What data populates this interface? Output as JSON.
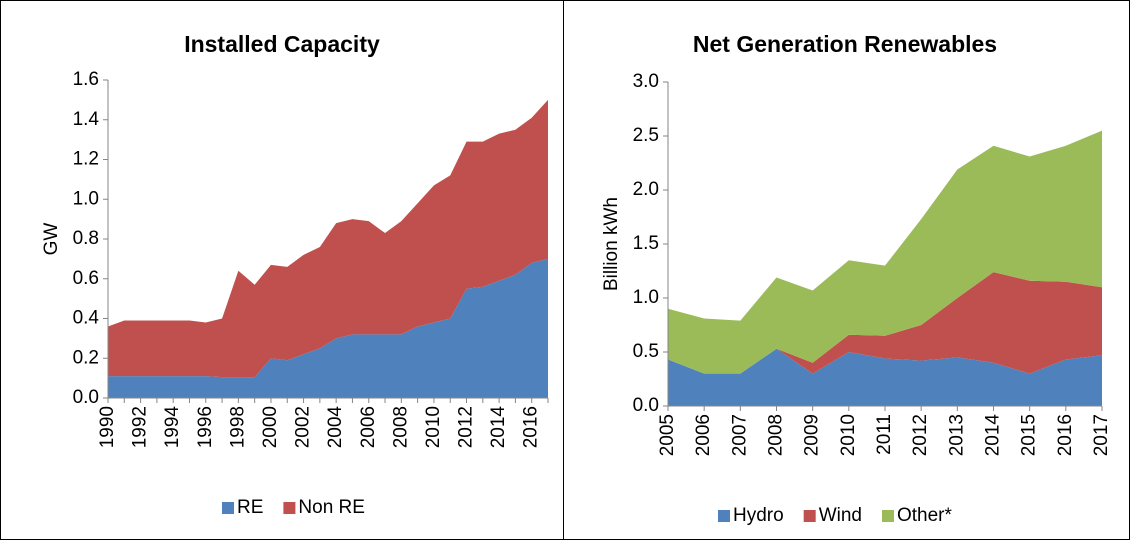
{
  "chart_data": [
    {
      "type": "area",
      "stacked": true,
      "title": "Installed Capacity",
      "y_label": "GW",
      "categories": [
        "1990",
        null,
        "1992",
        null,
        "1994",
        null,
        "1996",
        null,
        "1998",
        null,
        "2000",
        null,
        "2002",
        null,
        "2004",
        null,
        "2006",
        null,
        "2008",
        null,
        "2010",
        null,
        "2012",
        null,
        "2014",
        null,
        "2016",
        null
      ],
      "series": [
        {
          "name": "RE",
          "color": "#4f81bd",
          "values": [
            0.11,
            0.11,
            0.11,
            0.11,
            0.11,
            0.11,
            0.11,
            0.105,
            0.105,
            0.105,
            0.2,
            0.19,
            0.22,
            0.25,
            0.3,
            0.32,
            0.32,
            0.32,
            0.32,
            0.36,
            0.38,
            0.4,
            0.55,
            0.56,
            0.59,
            0.62,
            0.68,
            0.7
          ]
        },
        {
          "name": "Non RE",
          "color": "#c0504d",
          "values": [
            0.25,
            0.28,
            0.28,
            0.28,
            0.28,
            0.28,
            0.27,
            0.295,
            0.535,
            0.465,
            0.47,
            0.47,
            0.5,
            0.51,
            0.58,
            0.58,
            0.57,
            0.51,
            0.57,
            0.62,
            0.69,
            0.72,
            0.74,
            0.73,
            0.74,
            0.73,
            0.73,
            0.8
          ]
        }
      ],
      "ylim": [
        0,
        1.6
      ],
      "yticks": [
        {
          "value": 0,
          "label": "0.0"
        },
        0.2,
        0.4,
        0.6,
        0.8,
        {
          "value": 1,
          "label": "1.0"
        },
        1.2,
        1.4,
        1.6
      ],
      "legend": "bottom"
    },
    {
      "type": "area",
      "stacked": true,
      "title": "Net Generation Renewables",
      "y_label": "Billion kWh",
      "categories": [
        "2005",
        "2006",
        "2007",
        "2008",
        "2009",
        "2010",
        "2011",
        "2012",
        "2013",
        "2014",
        "2015",
        "2016",
        "2017"
      ],
      "series": [
        {
          "name": "Hydro",
          "color": "#4f81bd",
          "values": [
            0.43,
            0.3,
            0.3,
            0.53,
            0.3,
            0.5,
            0.44,
            0.42,
            0.45,
            0.4,
            0.3,
            0.43,
            0.47
          ]
        },
        {
          "name": "Wind",
          "color": "#c0504d",
          "values": [
            0,
            0,
            0,
            0,
            0.1,
            0.16,
            0.21,
            0.33,
            0.55,
            0.84,
            0.86,
            0.72,
            0.63
          ]
        },
        {
          "name": "Other*",
          "color": "#9bbb59",
          "values": [
            0.47,
            0.51,
            0.49,
            0.66,
            0.67,
            0.69,
            0.65,
            0.98,
            1.19,
            1.17,
            1.15,
            1.26,
            1.45
          ]
        }
      ],
      "ylim": [
        0,
        3
      ],
      "yticks": [
        {
          "value": 0,
          "label": "0.0"
        },
        0.5,
        {
          "value": 1,
          "label": "1.0"
        },
        1.5,
        {
          "value": 2,
          "label": "2.0"
        },
        2.5,
        {
          "value": 3,
          "label": "3.0"
        }
      ],
      "legend": "bottom"
    }
  ]
}
